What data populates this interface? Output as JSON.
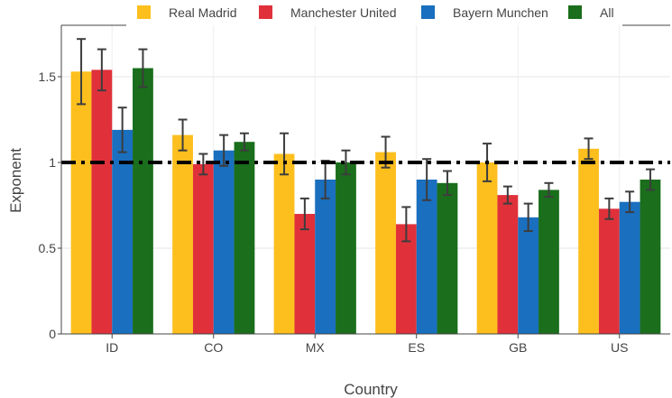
{
  "chart_data": {
    "type": "bar",
    "title": "",
    "xlabel": "Country",
    "ylabel": "Exponent",
    "categories": [
      "ID",
      "CO",
      "MX",
      "ES",
      "GB",
      "US"
    ],
    "ylim": [
      0,
      1.8
    ],
    "yticks": [
      0,
      0.5,
      1,
      1.5
    ],
    "ytick_labels": [
      "0",
      "0.5",
      "1",
      "1.5"
    ],
    "grid": true,
    "legend_position": "top",
    "reference_line": {
      "y": 1,
      "style": "dash-dot",
      "color": "#000000"
    },
    "series": [
      {
        "name": "Real Madrid",
        "color": "#FDBF1E",
        "values": [
          1.53,
          1.16,
          1.05,
          1.06,
          1.0,
          1.08
        ],
        "errors": [
          0.19,
          0.09,
          0.12,
          0.09,
          0.11,
          0.06
        ]
      },
      {
        "name": "Manchester United",
        "color": "#E0313B",
        "values": [
          1.54,
          0.99,
          0.7,
          0.64,
          0.81,
          0.73
        ],
        "errors": [
          0.12,
          0.06,
          0.09,
          0.1,
          0.05,
          0.06
        ]
      },
      {
        "name": "Bayern Munchen",
        "color": "#1A6FBF",
        "values": [
          1.19,
          1.07,
          0.9,
          0.9,
          0.68,
          0.77
        ],
        "errors": [
          0.13,
          0.09,
          0.11,
          0.12,
          0.08,
          0.06
        ]
      },
      {
        "name": "All",
        "color": "#1A6E1C",
        "values": [
          1.55,
          1.12,
          1.0,
          0.88,
          0.84,
          0.9
        ],
        "errors": [
          0.11,
          0.05,
          0.07,
          0.07,
          0.04,
          0.06
        ]
      }
    ]
  }
}
